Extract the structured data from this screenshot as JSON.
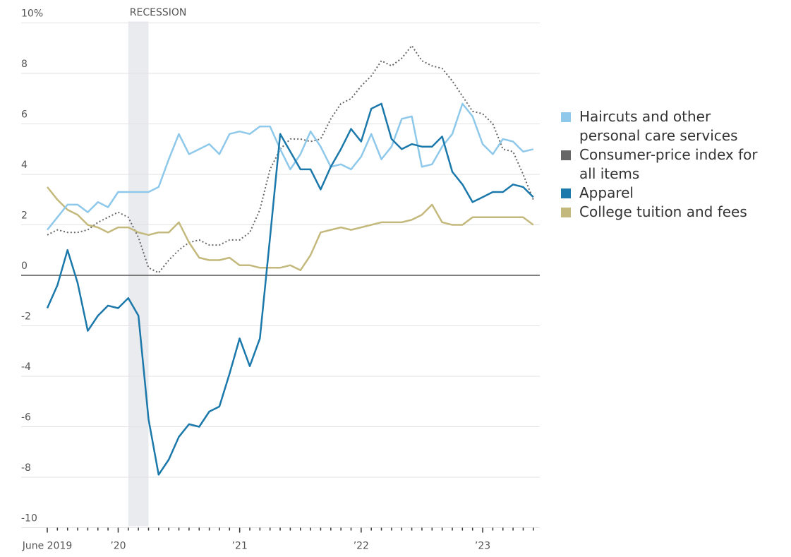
{
  "chart_data": {
    "type": "line",
    "categories": [
      "June 2019",
      null,
      null,
      null,
      null,
      null,
      null,
      "’20",
      null,
      null,
      null,
      null,
      null,
      null,
      null,
      null,
      null,
      null,
      null,
      "’21",
      null,
      null,
      null,
      null,
      null,
      null,
      null,
      null,
      null,
      null,
      null,
      "’22",
      null,
      null,
      null,
      null,
      null,
      null,
      null,
      null,
      null,
      null,
      null,
      "’23",
      null,
      null,
      null,
      null,
      null
    ],
    "series": [
      {
        "name": "Haircuts and other personal care services",
        "color": "#8ec8ea",
        "style": "solid",
        "values": [
          1.8,
          2.3,
          2.8,
          2.8,
          2.5,
          2.9,
          2.7,
          3.3,
          3.3,
          3.3,
          3.3,
          3.5,
          4.6,
          5.6,
          4.8,
          5.0,
          5.2,
          4.8,
          5.6,
          5.7,
          5.6,
          5.9,
          5.9,
          5.0,
          4.2,
          4.8,
          5.7,
          5.1,
          4.3,
          4.4,
          4.2,
          4.7,
          5.6,
          4.6,
          5.1,
          6.2,
          6.3,
          4.3,
          4.4,
          5.1,
          5.6,
          6.8,
          6.3,
          5.2,
          4.8,
          5.4,
          5.3,
          4.9,
          5.0
        ]
      },
      {
        "name": "Consumer-price index for all items",
        "color": "#666666",
        "style": "dotted",
        "values": [
          1.6,
          1.8,
          1.7,
          1.7,
          1.8,
          2.1,
          2.3,
          2.5,
          2.3,
          1.5,
          0.3,
          0.1,
          0.6,
          1.0,
          1.3,
          1.4,
          1.2,
          1.2,
          1.4,
          1.4,
          1.7,
          2.6,
          4.2,
          5.0,
          5.4,
          5.4,
          5.3,
          5.4,
          6.2,
          6.8,
          7.0,
          7.5,
          7.9,
          8.5,
          8.3,
          8.6,
          9.1,
          8.5,
          8.3,
          8.2,
          7.7,
          7.1,
          6.5,
          6.4,
          6.0,
          5.0,
          4.9,
          4.0,
          3.0
        ]
      },
      {
        "name": "Apparel",
        "color": "#1b78aa",
        "style": "solid",
        "values": [
          -1.3,
          -0.4,
          1.0,
          -0.3,
          -2.2,
          -1.6,
          -1.2,
          -1.3,
          -0.9,
          -1.6,
          -5.7,
          -7.9,
          -7.3,
          -6.4,
          -5.9,
          -6.0,
          -5.4,
          -5.2,
          -3.9,
          -2.5,
          -3.6,
          -2.5,
          1.5,
          5.6,
          4.9,
          4.2,
          4.2,
          3.4,
          4.3,
          5.0,
          5.8,
          5.3,
          6.6,
          6.8,
          5.4,
          5.0,
          5.2,
          5.1,
          5.1,
          5.5,
          4.1,
          3.6,
          2.9,
          3.1,
          3.3,
          3.3,
          3.6,
          3.5,
          3.1
        ]
      },
      {
        "name": "College tuition and fees",
        "color": "#c4b97c",
        "style": "solid",
        "values": [
          3.5,
          3.0,
          2.6,
          2.4,
          2.0,
          1.9,
          1.7,
          1.9,
          1.9,
          1.7,
          1.6,
          1.7,
          1.7,
          2.1,
          1.3,
          0.7,
          0.6,
          0.6,
          0.7,
          0.4,
          0.4,
          0.3,
          0.3,
          0.3,
          0.4,
          0.2,
          0.8,
          1.7,
          1.8,
          1.9,
          1.8,
          1.9,
          2.0,
          2.1,
          2.1,
          2.1,
          2.2,
          2.4,
          2.8,
          2.1,
          2.0,
          2.0,
          2.3,
          2.3,
          2.3,
          2.3,
          2.3,
          2.3,
          2.0
        ]
      }
    ],
    "ylim": [
      -10,
      10
    ],
    "yticks": [
      {
        "value": 10,
        "label": "10%"
      },
      8,
      6,
      4,
      2,
      0,
      -2,
      -4,
      -6,
      -8,
      -10
    ],
    "grid": true,
    "legend": "right",
    "recession": {
      "label": "RECESSION",
      "start": 8,
      "end": 10
    }
  }
}
